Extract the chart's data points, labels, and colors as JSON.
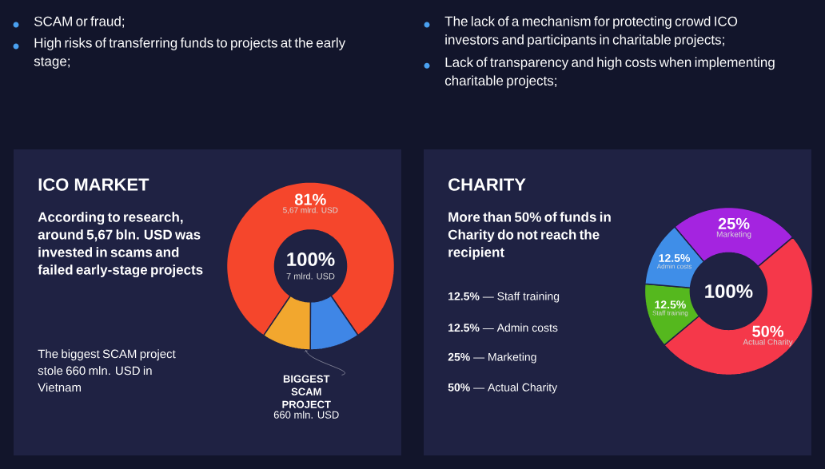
{
  "chart_data": [
    {
      "type": "other",
      "annotations": [
        "SCAM or fraud;",
        "High risks of transferring funds to projects at the early stage;",
        "The lack of a mechanism for protecting crowd ICO investors and participants in charitable projects;",
        "Lack of transparency and high costs when implementing charitable projects;"
      ]
    },
    {
      "type": "donut",
      "title": "ICO MARKET",
      "subtitle": "According to research, around 5,67 bln. USD was invested in scams and failed early-stage projects",
      "categories": [
        "5,67 mlrd. USD",
        null,
        "BIGGEST SCAM PROJECT"
      ],
      "values": [
        81,
        9.6,
        9.4
      ],
      "colors": [
        "#f5462c",
        "#3f86e6",
        "#f2a72e"
      ],
      "value_labels": [
        "81%",
        null,
        null
      ],
      "annotations": [
        "100%",
        "7 mlrd. USD",
        "660 mln. USD",
        "The biggest SCAM project stole 660 mln. USD in Vietnam"
      ]
    },
    {
      "type": "donut",
      "title": "CHARITY",
      "subtitle": "More than 50% of funds in Charity do not reach the recipient",
      "categories": [
        "Marketing",
        "Actual Charity",
        "Staff training",
        "Admin costs"
      ],
      "values": [
        25,
        50,
        12.5,
        12.5
      ],
      "colors": [
        "#a424e0",
        "#f5384a",
        "#55b81e",
        "#3f8ee8"
      ],
      "value_labels": [
        "25%",
        "50%",
        "12.5%",
        "12.5%"
      ],
      "annotations": [
        "100%",
        "**12.5%** — Staff training",
        "**12.5%** — Admin costs",
        "**25%** — Marketing",
        "**50%** — Actual Charity"
      ]
    }
  ]
}
